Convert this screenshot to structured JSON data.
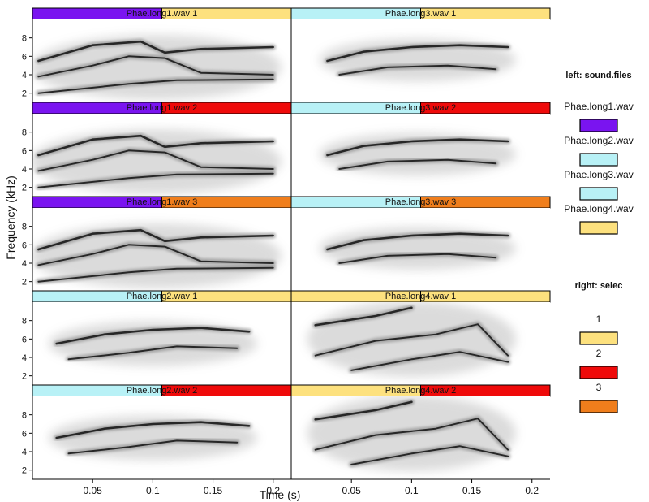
{
  "chart_data": {
    "type": "heatmap",
    "subtype": "spectrogram-catalog",
    "xlabel": "Time (s)",
    "ylabel": "Frequency (kHz)",
    "xlim": [
      0,
      0.215
    ],
    "ylim": [
      1,
      10
    ],
    "x_ticks": [
      0.05,
      0.1,
      0.15,
      0.2
    ],
    "x_tick_labels": [
      "0.05",
      "0.1",
      "0.15",
      "0.2"
    ],
    "y_ticks": [
      2,
      4,
      6,
      8
    ],
    "y_tick_labels": [
      "2",
      "4",
      "6",
      "8"
    ],
    "colormap": "grayscale",
    "layout": {
      "rows": 5,
      "cols": 2
    },
    "panels": [
      {
        "row": 0,
        "col": 0,
        "title": "Phae.long1.wav 1",
        "sound_file": "Phae.long1.wav",
        "selec": "1"
      },
      {
        "row": 0,
        "col": 1,
        "title": "Phae.long3.wav 1",
        "sound_file": "Phae.long3.wav",
        "selec": "1"
      },
      {
        "row": 1,
        "col": 0,
        "title": "Phae.long1.wav 2",
        "sound_file": "Phae.long1.wav",
        "selec": "2"
      },
      {
        "row": 1,
        "col": 1,
        "title": "Phae.long3.wav 2",
        "sound_file": "Phae.long3.wav",
        "selec": "2"
      },
      {
        "row": 2,
        "col": 0,
        "title": "Phae.long1.wav 3",
        "sound_file": "Phae.long1.wav",
        "selec": "3"
      },
      {
        "row": 2,
        "col": 1,
        "title": "Phae.long3.wav 3",
        "sound_file": "Phae.long3.wav",
        "selec": "3"
      },
      {
        "row": 3,
        "col": 0,
        "title": "Phae.long2.wav 1",
        "sound_file": "Phae.long2.wav",
        "selec": "1"
      },
      {
        "row": 3,
        "col": 1,
        "title": "Phae.long4.wav 1",
        "sound_file": "Phae.long4.wav",
        "selec": "1"
      },
      {
        "row": 4,
        "col": 0,
        "title": "Phae.long2.wav 2",
        "sound_file": "Phae.long2.wav",
        "selec": "2"
      },
      {
        "row": 4,
        "col": 1,
        "title": "Phae.long4.wav 2",
        "sound_file": "Phae.long4.wav",
        "selec": "2"
      }
    ],
    "label_bars": {
      "left": "sound.files",
      "right": "selec"
    },
    "legend": {
      "placement": "right",
      "sections": [
        {
          "title": "left: sound.files",
          "entries": [
            {
              "label": "Phae.long1.wav",
              "color": "#7a14f0"
            },
            {
              "label": "Phae.long2.wav",
              "color": "#b8f1f6"
            },
            {
              "label": "Phae.long3.wav",
              "color": "#b8f1f6"
            },
            {
              "label": "Phae.long4.wav",
              "color": "#fde17e"
            }
          ]
        },
        {
          "title": "right: selec",
          "entries": [
            {
              "label": "1",
              "color": "#fde17e"
            },
            {
              "label": "2",
              "color": "#ef0a0a"
            },
            {
              "label": "3",
              "color": "#f07e1c"
            }
          ]
        }
      ]
    },
    "spectral_tracks": {
      "Phae.long1.wav": [
        [
          [
            0.005,
            5.5
          ],
          [
            0.05,
            7.2
          ],
          [
            0.09,
            7.6
          ],
          [
            0.11,
            6.4
          ],
          [
            0.14,
            6.8
          ],
          [
            0.2,
            7.0
          ]
        ],
        [
          [
            0.005,
            3.8
          ],
          [
            0.05,
            5.0
          ],
          [
            0.08,
            6.0
          ],
          [
            0.11,
            5.8
          ],
          [
            0.14,
            4.2
          ],
          [
            0.2,
            4.0
          ]
        ],
        [
          [
            0.005,
            2.0
          ],
          [
            0.08,
            3.0
          ],
          [
            0.12,
            3.4
          ],
          [
            0.2,
            3.5
          ]
        ]
      ],
      "Phae.long2.wav": [
        [
          [
            0.02,
            5.5
          ],
          [
            0.06,
            6.5
          ],
          [
            0.1,
            7.0
          ],
          [
            0.14,
            7.2
          ],
          [
            0.18,
            6.8
          ]
        ],
        [
          [
            0.03,
            3.8
          ],
          [
            0.08,
            4.5
          ],
          [
            0.12,
            5.2
          ],
          [
            0.17,
            5.0
          ]
        ]
      ],
      "Phae.long3.wav": [
        [
          [
            0.03,
            5.5
          ],
          [
            0.06,
            6.5
          ],
          [
            0.1,
            7.0
          ],
          [
            0.14,
            7.2
          ],
          [
            0.18,
            7.0
          ]
        ],
        [
          [
            0.04,
            4.0
          ],
          [
            0.08,
            4.8
          ],
          [
            0.13,
            5.0
          ],
          [
            0.17,
            4.6
          ]
        ]
      ],
      "Phae.long4.wav": [
        [
          [
            0.02,
            7.5
          ],
          [
            0.07,
            8.5
          ],
          [
            0.1,
            9.4
          ]
        ],
        [
          [
            0.02,
            4.2
          ],
          [
            0.07,
            5.8
          ],
          [
            0.12,
            6.5
          ],
          [
            0.155,
            7.6
          ],
          [
            0.18,
            4.2
          ]
        ],
        [
          [
            0.05,
            2.6
          ],
          [
            0.1,
            3.8
          ],
          [
            0.14,
            4.6
          ],
          [
            0.18,
            3.5
          ]
        ]
      ]
    }
  }
}
